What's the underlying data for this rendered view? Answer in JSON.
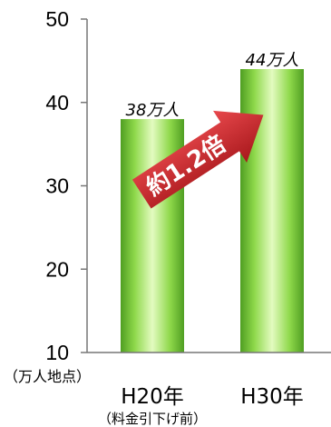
{
  "chart_data": {
    "type": "bar",
    "categories": [
      "H20年",
      "H30年"
    ],
    "category_notes": [
      "（料金引下げ前）",
      ""
    ],
    "values": [
      38,
      44
    ],
    "data_labels": [
      "38万人",
      "44万人"
    ],
    "ylabel": "（万人地点）",
    "ylim": [
      10,
      50
    ],
    "yticks": [
      10,
      20,
      30,
      40,
      50
    ],
    "grid": false,
    "legend": "none",
    "bar_color": "#7ccc3c",
    "annotation": {
      "text": "約1.2倍",
      "style": "arrow",
      "color": "#c8282c"
    }
  }
}
